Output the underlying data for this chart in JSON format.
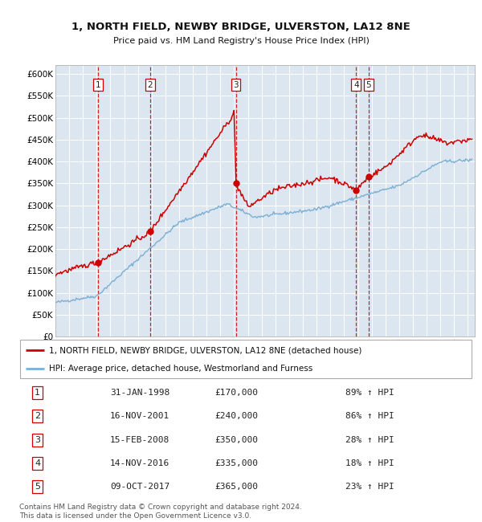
{
  "title": "1, NORTH FIELD, NEWBY BRIDGE, ULVERSTON, LA12 8NE",
  "subtitle": "Price paid vs. HM Land Registry's House Price Index (HPI)",
  "background_color": "#dce6f0",
  "plot_bg_color": "#dce6f0",
  "grid_color": "#ffffff",
  "red_line_color": "#cc0000",
  "blue_line_color": "#7bafd4",
  "sale_marker_color": "#cc0000",
  "vline_color": "#cc0000",
  "sales": [
    {
      "label": 1,
      "date_num": 1998.08,
      "price": 170000,
      "date_str": "31-JAN-1998",
      "pct": "89%",
      "dir": "↑"
    },
    {
      "label": 2,
      "date_num": 2001.88,
      "price": 240000,
      "date_str": "16-NOV-2001",
      "pct": "86%",
      "dir": "↑"
    },
    {
      "label": 3,
      "date_num": 2008.12,
      "price": 350000,
      "date_str": "15-FEB-2008",
      "pct": "28%",
      "dir": "↑"
    },
    {
      "label": 4,
      "date_num": 2016.87,
      "price": 335000,
      "date_str": "14-NOV-2016",
      "pct": "18%",
      "dir": "↑"
    },
    {
      "label": 5,
      "date_num": 2017.77,
      "price": 365000,
      "date_str": "09-OCT-2017",
      "pct": "23%",
      "dir": "↑"
    }
  ],
  "ylim": [
    0,
    620000
  ],
  "xlim": [
    1995.0,
    2025.5
  ],
  "yticks": [
    0,
    50000,
    100000,
    150000,
    200000,
    250000,
    300000,
    350000,
    400000,
    450000,
    500000,
    550000,
    600000
  ],
  "ytick_labels": [
    "£0",
    "£50K",
    "£100K",
    "£150K",
    "£200K",
    "£250K",
    "£300K",
    "£350K",
    "£400K",
    "£450K",
    "£500K",
    "£550K",
    "£600K"
  ],
  "xticks": [
    1995,
    1996,
    1997,
    1998,
    1999,
    2000,
    2001,
    2002,
    2003,
    2004,
    2005,
    2006,
    2007,
    2008,
    2009,
    2010,
    2011,
    2012,
    2013,
    2014,
    2015,
    2016,
    2017,
    2018,
    2019,
    2020,
    2021,
    2022,
    2023,
    2024,
    2025
  ],
  "legend_label_red": "1, NORTH FIELD, NEWBY BRIDGE, ULVERSTON, LA12 8NE (detached house)",
  "legend_label_blue": "HPI: Average price, detached house, Westmorland and Furness",
  "footnote": "Contains HM Land Registry data © Crown copyright and database right 2024.\nThis data is licensed under the Open Government Licence v3.0.",
  "table_rows": [
    [
      1,
      "31-JAN-1998",
      "£170,000",
      "89% ↑ HPI"
    ],
    [
      2,
      "16-NOV-2001",
      "£240,000",
      "86% ↑ HPI"
    ],
    [
      3,
      "15-FEB-2008",
      "£350,000",
      "28% ↑ HPI"
    ],
    [
      4,
      "14-NOV-2016",
      "£335,000",
      "18% ↑ HPI"
    ],
    [
      5,
      "09-OCT-2017",
      "£365,000",
      "23% ↑ HPI"
    ]
  ]
}
